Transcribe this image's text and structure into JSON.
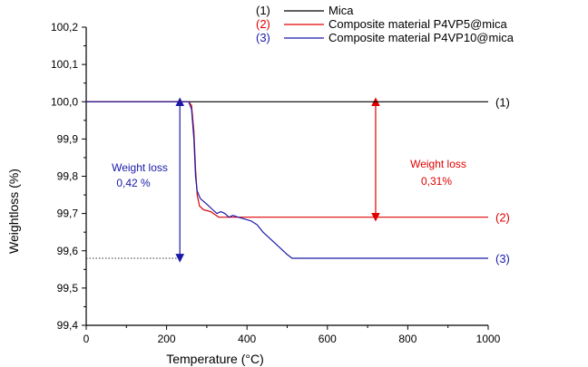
{
  "chart_data": {
    "type": "line",
    "title": "",
    "xlabel": "Temperature (°C)",
    "ylabel": "Weightloss (%)",
    "xlim": [
      0,
      1000
    ],
    "ylim": [
      99.4,
      100.2
    ],
    "x_ticks": [
      0,
      200,
      400,
      600,
      800,
      1000
    ],
    "y_ticks": [
      99.4,
      99.5,
      99.6,
      99.7,
      99.8,
      99.9,
      100.0,
      100.1,
      100.2
    ],
    "x_tick_labels": [
      "0",
      "200",
      "400",
      "600",
      "800",
      "1000"
    ],
    "y_tick_labels": [
      "99,4",
      "99,5",
      "99,6",
      "99,7",
      "99,8",
      "99,9",
      "100,0",
      "100,1",
      "100,2"
    ],
    "grid": false,
    "legend_position": "top-right",
    "series": [
      {
        "name": "Mica",
        "legend_number": "(1)",
        "end_label": "(1)",
        "color": "#000000",
        "points": [
          [
            0,
            100.0
          ],
          [
            1000,
            100.0
          ]
        ]
      },
      {
        "name": "Composite material P4VP5@mica",
        "legend_number": "(2)",
        "end_label": "(2)",
        "color": "#e00000",
        "points": [
          [
            0,
            100.0
          ],
          [
            255,
            100.0
          ],
          [
            262,
            99.99
          ],
          [
            268,
            99.92
          ],
          [
            272,
            99.82
          ],
          [
            276,
            99.75
          ],
          [
            282,
            99.72
          ],
          [
            292,
            99.71
          ],
          [
            310,
            99.705
          ],
          [
            330,
            99.69
          ],
          [
            360,
            99.69
          ],
          [
            400,
            99.69
          ],
          [
            1000,
            99.69
          ]
        ]
      },
      {
        "name": "Composite material P4VP10@mica",
        "legend_number": "(3)",
        "end_label": "(3)",
        "color": "#1a1aa8",
        "points": [
          [
            0,
            100.0
          ],
          [
            255,
            100.0
          ],
          [
            262,
            99.98
          ],
          [
            268,
            99.9
          ],
          [
            272,
            99.8
          ],
          [
            276,
            99.76
          ],
          [
            284,
            99.74
          ],
          [
            300,
            99.725
          ],
          [
            315,
            99.71
          ],
          [
            325,
            99.7
          ],
          [
            335,
            99.705
          ],
          [
            345,
            99.7
          ],
          [
            355,
            99.69
          ],
          [
            365,
            99.695
          ],
          [
            378,
            99.69
          ],
          [
            395,
            99.685
          ],
          [
            410,
            99.68
          ],
          [
            425,
            99.67
          ],
          [
            440,
            99.65
          ],
          [
            460,
            99.63
          ],
          [
            480,
            99.61
          ],
          [
            500,
            99.59
          ],
          [
            512,
            99.58
          ],
          [
            1000,
            99.58
          ]
        ]
      }
    ],
    "annotations": {
      "left": {
        "line1": "Weight loss",
        "line2": "0,42 %",
        "color": "#1a1aa8",
        "arrow_x": 233,
        "arrow_from": 100.0,
        "arrow_to": 99.58
      },
      "right": {
        "line1": "Weight loss",
        "line2": "0,31%",
        "color": "#e00000",
        "arrow_x": 720,
        "arrow_from": 100.0,
        "arrow_to": 99.69
      },
      "dotted_level": 99.58
    }
  }
}
